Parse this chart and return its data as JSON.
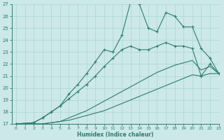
{
  "xlabel": "Humidex (Indice chaleur)",
  "xlim": [
    -0.5,
    23
  ],
  "ylim": [
    17,
    27
  ],
  "xticks": [
    0,
    1,
    2,
    3,
    4,
    5,
    6,
    7,
    8,
    9,
    10,
    11,
    12,
    13,
    14,
    15,
    16,
    17,
    18,
    19,
    20,
    21,
    22,
    23
  ],
  "yticks": [
    17,
    18,
    19,
    20,
    21,
    22,
    23,
    24,
    25,
    26,
    27
  ],
  "line_color": "#2e7d6e",
  "bg_color": "#cce8e8",
  "grid_color": "#aad4d4",
  "lines": [
    {
      "x": [
        0,
        1,
        2,
        3,
        4,
        5,
        6,
        7,
        8,
        9,
        10,
        11,
        12,
        13,
        14,
        15,
        16,
        17,
        18,
        19,
        20,
        21,
        22,
        23
      ],
      "y": [
        17,
        17,
        17,
        17,
        17.1,
        17.2,
        17.3,
        17.5,
        17.7,
        17.9,
        18.1,
        18.4,
        18.7,
        19.0,
        19.3,
        19.6,
        19.9,
        20.2,
        20.5,
        20.8,
        21.1,
        21.0,
        21.2,
        21.2
      ],
      "markers": false
    },
    {
      "x": [
        0,
        1,
        2,
        3,
        4,
        5,
        6,
        7,
        8,
        9,
        10,
        11,
        12,
        13,
        14,
        15,
        16,
        17,
        18,
        19,
        20,
        21,
        22,
        23
      ],
      "y": [
        17,
        17,
        17,
        17,
        17.1,
        17.2,
        17.5,
        17.8,
        18.1,
        18.5,
        18.9,
        19.3,
        19.7,
        20.1,
        20.5,
        20.9,
        21.3,
        21.6,
        21.9,
        22.1,
        22.3,
        21.5,
        21.8,
        21.2
      ],
      "markers": false
    },
    {
      "x": [
        0,
        2,
        3,
        4,
        5,
        6,
        7,
        8,
        9,
        10,
        11,
        12,
        13,
        14,
        15,
        16,
        17,
        18,
        19,
        20,
        21,
        22,
        23
      ],
      "y": [
        17,
        17.1,
        17.5,
        18.0,
        18.5,
        19.1,
        19.7,
        20.3,
        21.0,
        21.8,
        22.5,
        23.2,
        23.5,
        23.2,
        23.2,
        23.5,
        23.8,
        23.5,
        23.5,
        23.3,
        21.0,
        22.0,
        21.2
      ],
      "markers": true
    },
    {
      "x": [
        0,
        2,
        3,
        4,
        5,
        6,
        7,
        8,
        9,
        10,
        11,
        12,
        13,
        14,
        15,
        16,
        17,
        18,
        19,
        20,
        21,
        22,
        23
      ],
      "y": [
        17,
        17.1,
        17.5,
        18.0,
        18.5,
        19.5,
        20.3,
        21.2,
        22.2,
        23.2,
        23.0,
        24.4,
        27.2,
        27.0,
        25.0,
        24.7,
        26.3,
        26.0,
        25.1,
        25.1,
        23.3,
        22.5,
        21.2
      ],
      "markers": true
    }
  ]
}
